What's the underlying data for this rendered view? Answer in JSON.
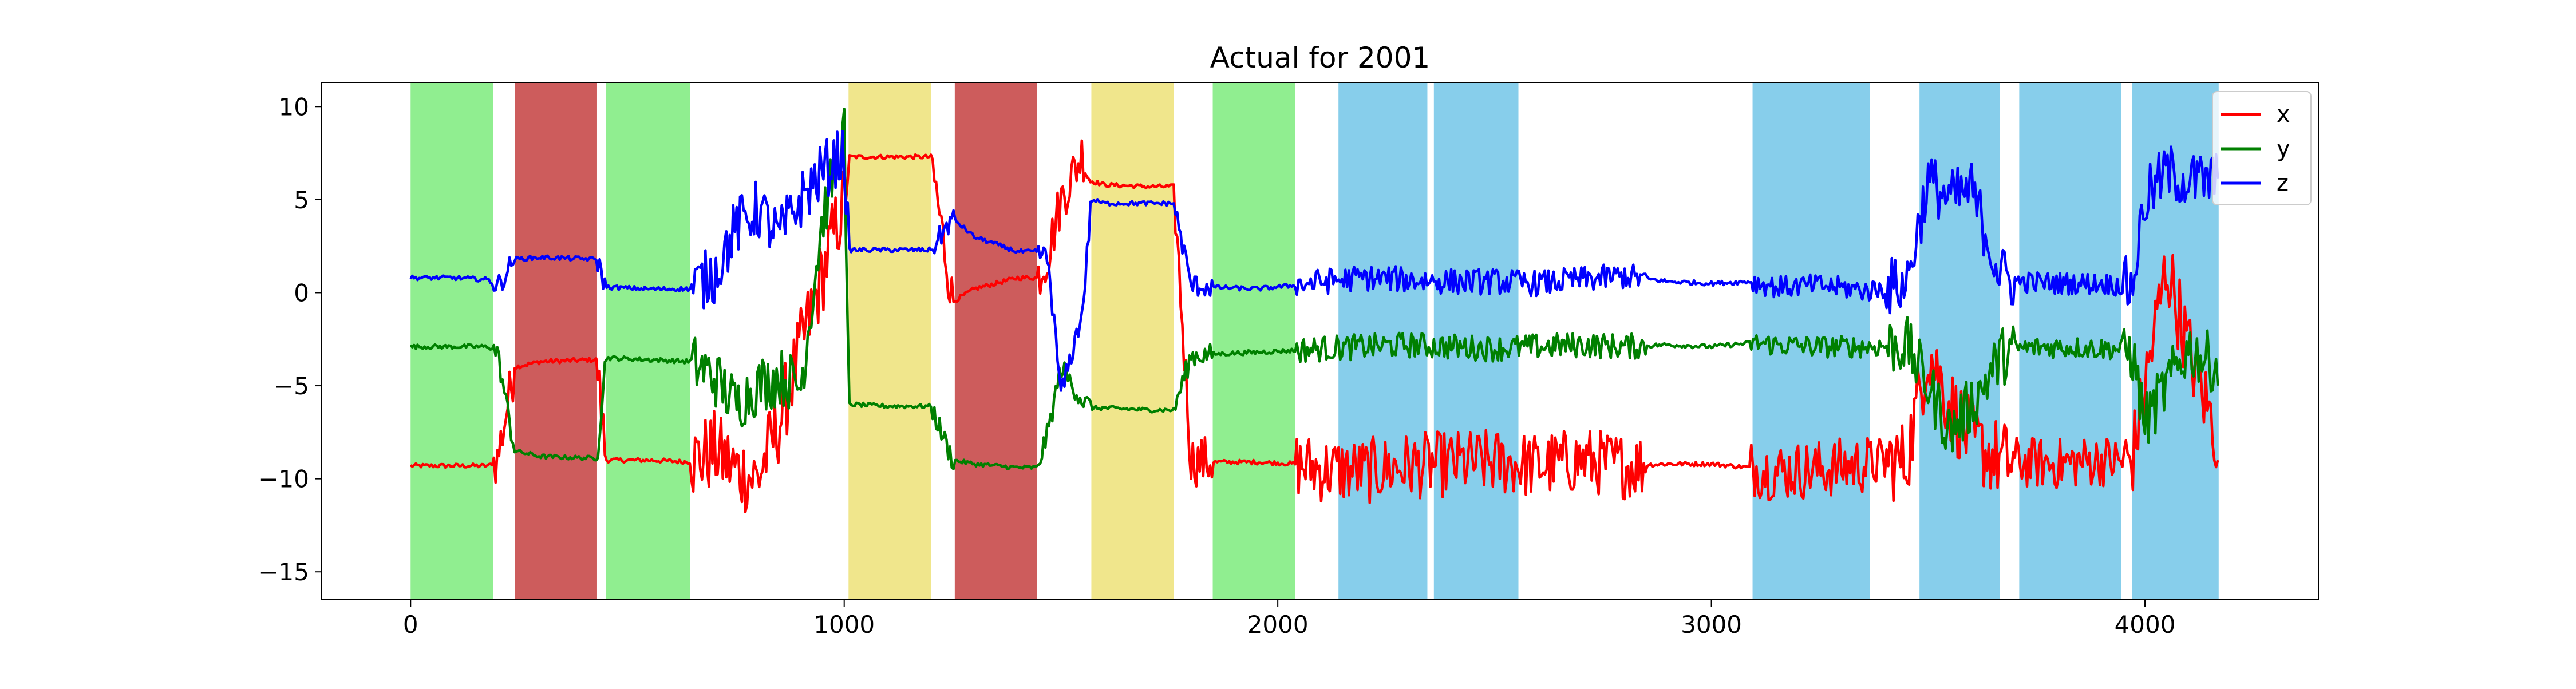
{
  "chart_data": {
    "type": "line",
    "title": "Actual for 2001",
    "xlabel": "",
    "ylabel": "",
    "xlim": [
      -205,
      4400
    ],
    "ylim": [
      -16.5,
      11.3
    ],
    "xticks": [
      0,
      1000,
      2000,
      3000,
      4000
    ],
    "yticks": [
      10,
      5,
      0,
      -5,
      -10,
      -15
    ],
    "grid": false,
    "legend": {
      "location": "upper right",
      "entries": [
        "x",
        "y",
        "z"
      ]
    },
    "shaded_regions": [
      {
        "start": 0,
        "end": 190,
        "color": "#90ee90"
      },
      {
        "start": 240,
        "end": 430,
        "color": "#cd5c5c"
      },
      {
        "start": 450,
        "end": 645,
        "color": "#90ee90"
      },
      {
        "start": 1010,
        "end": 1200,
        "color": "#f0e68c"
      },
      {
        "start": 1255,
        "end": 1445,
        "color": "#cd5c5c"
      },
      {
        "start": 1570,
        "end": 1760,
        "color": "#f0e68c"
      },
      {
        "start": 1850,
        "end": 2040,
        "color": "#90ee90"
      },
      {
        "start": 2140,
        "end": 2345,
        "color": "#87ceeb"
      },
      {
        "start": 2360,
        "end": 2555,
        "color": "#87ceeb"
      },
      {
        "start": 3095,
        "end": 3365,
        "color": "#87ceeb"
      },
      {
        "start": 3480,
        "end": 3665,
        "color": "#87ceeb"
      },
      {
        "start": 3710,
        "end": 3945,
        "color": "#87ceeb"
      },
      {
        "start": 3970,
        "end": 4170,
        "color": "#87ceeb"
      }
    ],
    "x": [
      0,
      100,
      180,
      200,
      240,
      300,
      430,
      450,
      550,
      645,
      700,
      750,
      800,
      850,
      900,
      950,
      1000,
      1010,
      1100,
      1200,
      1250,
      1300,
      1400,
      1445,
      1470,
      1500,
      1550,
      1570,
      1600,
      1700,
      1760,
      1800,
      1850,
      1950,
      2040,
      2100,
      2200,
      2300,
      2400,
      2500,
      2600,
      2700,
      2800,
      2900,
      3000,
      3090,
      3150,
      3250,
      3365,
      3450,
      3500,
      3550,
      3600,
      3665,
      3700,
      3800,
      3900,
      3945,
      3970,
      4000,
      4050,
      4100,
      4170
    ],
    "series": [
      {
        "name": "x",
        "color": "#ff0000",
        "values": [
          -9.3,
          -9.3,
          -9.3,
          -9.0,
          -4.0,
          -3.7,
          -3.6,
          -9.0,
          -9.0,
          -9.1,
          -8.5,
          -9.5,
          -10.0,
          -7.0,
          -3.0,
          1.0,
          5.0,
          7.3,
          7.3,
          7.3,
          -0.5,
          0.2,
          0.8,
          0.8,
          2.0,
          5.0,
          7.5,
          6.0,
          5.8,
          5.7,
          5.7,
          -9.0,
          -9.1,
          -9.1,
          -9.2,
          -9.5,
          -9.6,
          -9.3,
          -9.2,
          -9.1,
          -9.3,
          -9.0,
          -9.3,
          -9.2,
          -9.2,
          -9.4,
          -9.6,
          -9.5,
          -9.2,
          -9.0,
          -3.0,
          -6.0,
          -8.0,
          -9.0,
          -9.1,
          -9.2,
          -9.0,
          -9.1,
          -9.0,
          -5.0,
          1.5,
          -3.0,
          -8.0
        ]
      },
      {
        "name": "y",
        "color": "#008000",
        "values": [
          -2.9,
          -2.9,
          -2.9,
          -3.2,
          -8.5,
          -8.8,
          -8.9,
          -3.5,
          -3.6,
          -3.7,
          -4.5,
          -6.0,
          -5.0,
          -4.5,
          -5.0,
          4.0,
          8.5,
          -6.0,
          -6.1,
          -6.1,
          -9.0,
          -9.2,
          -9.4,
          -9.4,
          -7.5,
          -4.0,
          -5.8,
          -6.2,
          -6.2,
          -6.3,
          -6.3,
          -3.4,
          -3.3,
          -3.2,
          -3.1,
          -3.0,
          -2.9,
          -2.8,
          -2.9,
          -3.0,
          -2.9,
          -2.8,
          -2.9,
          -2.8,
          -2.9,
          -2.7,
          -2.8,
          -2.9,
          -2.9,
          -2.8,
          -5.0,
          -7.5,
          -6.0,
          -3.5,
          -3.0,
          -2.9,
          -3.0,
          -3.0,
          -3.2,
          -7.0,
          -5.0,
          -3.0,
          -4.0
        ]
      },
      {
        "name": "z",
        "color": "#0000ff",
        "values": [
          0.8,
          0.8,
          0.7,
          0.3,
          1.8,
          1.9,
          1.8,
          0.3,
          0.2,
          0.2,
          1.0,
          3.5,
          4.5,
          3.0,
          5.0,
          6.5,
          7.5,
          2.3,
          2.3,
          2.3,
          4.0,
          3.0,
          2.2,
          2.2,
          1.8,
          -5.5,
          -1.0,
          5.0,
          4.8,
          4.8,
          4.8,
          0.4,
          0.3,
          0.2,
          0.4,
          0.6,
          0.8,
          0.7,
          0.6,
          0.6,
          0.5,
          0.7,
          0.9,
          0.6,
          0.5,
          0.6,
          0.3,
          0.4,
          0.1,
          0.5,
          6.0,
          5.0,
          5.5,
          1.0,
          0.6,
          0.5,
          0.5,
          0.4,
          0.3,
          5.0,
          6.5,
          6.0,
          6.0
        ]
      }
    ]
  }
}
